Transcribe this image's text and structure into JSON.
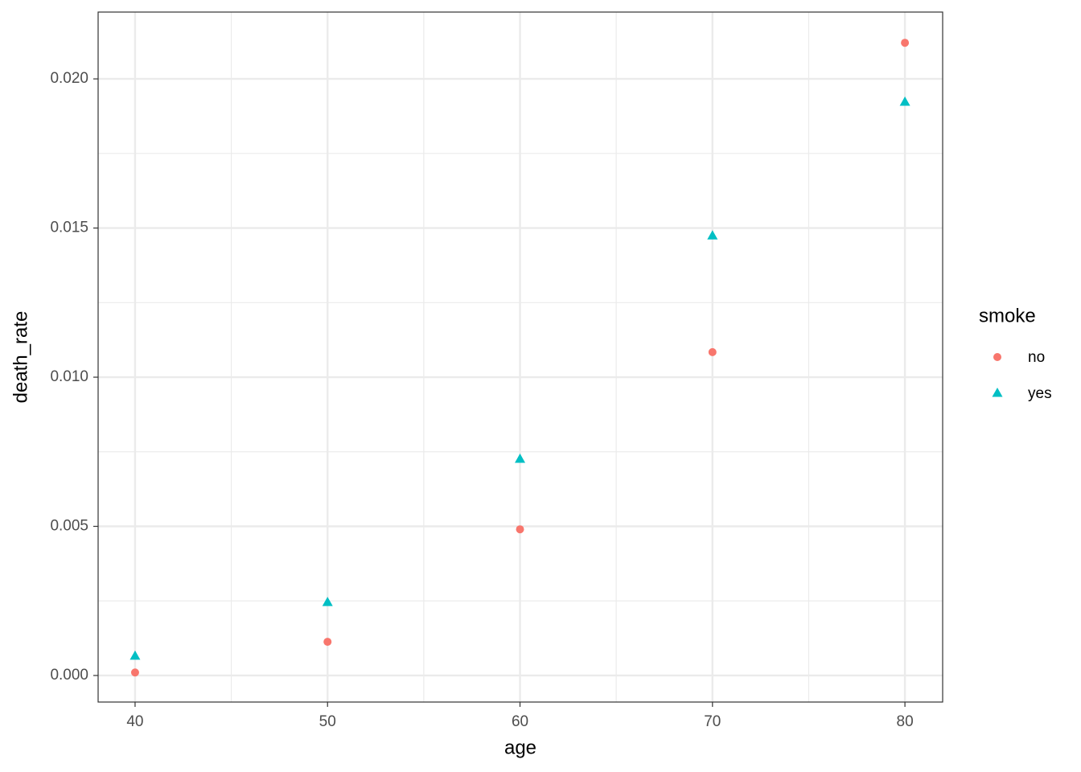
{
  "chart_data": {
    "type": "scatter",
    "x_label": "age",
    "y_label": "death_rate",
    "legend_title": "smoke",
    "legend": "right",
    "x": [
      40,
      50,
      60,
      70,
      80
    ],
    "series": [
      {
        "name": "no",
        "color": "#F8766D",
        "shape": "circle",
        "values": [
          0.0001,
          0.00113,
          0.0049,
          0.01084,
          0.02121
        ]
      },
      {
        "name": "yes",
        "color": "#00BFC4",
        "shape": "triangle",
        "values": [
          0.00065,
          0.00245,
          0.00725,
          0.01474,
          0.01922
        ]
      }
    ],
    "xlim": [
      38.08,
      81.96
    ],
    "ylim": [
      -0.00089,
      0.02224
    ],
    "xticks": [
      40,
      50,
      60,
      70,
      80
    ],
    "yticks": [
      {
        "value": 0,
        "label": "0.000"
      },
      {
        "value": 0.005,
        "label": "0.005"
      },
      {
        "value": 0.01,
        "label": "0.010"
      },
      {
        "value": 0.015,
        "label": "0.015"
      },
      {
        "value": 0.02,
        "label": "0.020"
      }
    ],
    "x_minor_grid": [
      45,
      55,
      65,
      75
    ],
    "y_minor_grid": [
      0.0025,
      0.0075,
      0.0125,
      0.0175
    ],
    "grid": true
  }
}
